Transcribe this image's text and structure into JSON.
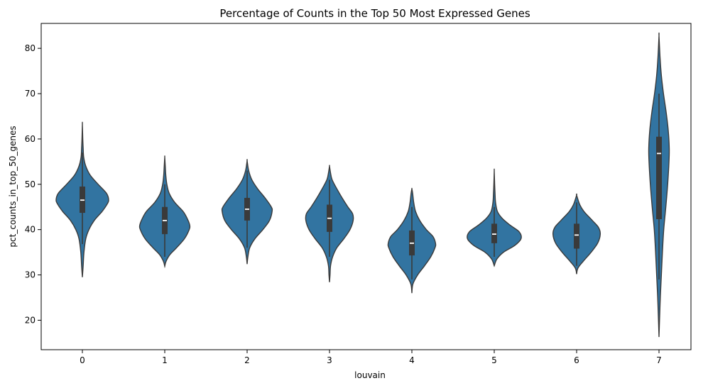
{
  "chart_data": {
    "type": "violin",
    "title": "Percentage of Counts in the Top 50 Most Expressed Genes",
    "xlabel": "louvain",
    "ylabel": "pct_counts_in_top_50_genes",
    "categories": [
      "0",
      "1",
      "2",
      "3",
      "4",
      "5",
      "6",
      "7"
    ],
    "y_ticks": [
      "20",
      "30",
      "40",
      "50",
      "60",
      "70",
      "80"
    ],
    "ylim": [
      13.5,
      85.5
    ],
    "colors": {
      "fill": "#3274a1",
      "edge": "#3a3a3a",
      "box": "#3a3a3a",
      "median": "#ffffff"
    },
    "violins": [
      {
        "category": "0",
        "min": 29.5,
        "max": 63.3,
        "q1": 43.7,
        "median": 46.5,
        "q3": 49.5,
        "whisker_low": 36.8,
        "whisker_high": 57.0,
        "profile": [
          [
            29.5,
            0.0
          ],
          [
            32,
            0.03
          ],
          [
            35,
            0.06
          ],
          [
            38,
            0.13
          ],
          [
            40,
            0.25
          ],
          [
            42,
            0.45
          ],
          [
            44,
            0.75
          ],
          [
            45.5,
            0.93
          ],
          [
            46.5,
            1.0
          ],
          [
            48,
            0.92
          ],
          [
            50,
            0.6
          ],
          [
            52,
            0.3
          ],
          [
            54,
            0.13
          ],
          [
            56,
            0.05
          ],
          [
            58,
            0.03
          ],
          [
            60,
            0.015
          ],
          [
            63.3,
            0.0
          ]
        ]
      },
      {
        "category": "1",
        "min": 31.9,
        "max": 56.0,
        "q1": 39.0,
        "median": 42.0,
        "q3": 45.0,
        "whisker_low": 34.0,
        "whisker_high": 50.0,
        "profile": [
          [
            31.9,
            0.0
          ],
          [
            33,
            0.05
          ],
          [
            34.5,
            0.2
          ],
          [
            36,
            0.45
          ],
          [
            38,
            0.75
          ],
          [
            40,
            0.93
          ],
          [
            41,
            0.95
          ],
          [
            42.5,
            0.85
          ],
          [
            44,
            0.7
          ],
          [
            46,
            0.38
          ],
          [
            48,
            0.17
          ],
          [
            50,
            0.08
          ],
          [
            52,
            0.04
          ],
          [
            54,
            0.02
          ],
          [
            56,
            0.0
          ]
        ]
      },
      {
        "category": "2",
        "min": 32.4,
        "max": 55.2,
        "q1": 42.0,
        "median": 44.5,
        "q3": 47.0,
        "whisker_low": 36.0,
        "whisker_high": 53.0,
        "profile": [
          [
            32.4,
            0.0
          ],
          [
            34,
            0.03
          ],
          [
            36,
            0.1
          ],
          [
            38,
            0.3
          ],
          [
            40,
            0.6
          ],
          [
            42,
            0.85
          ],
          [
            44,
            0.95
          ],
          [
            45,
            0.92
          ],
          [
            47,
            0.68
          ],
          [
            49,
            0.4
          ],
          [
            51,
            0.18
          ],
          [
            53,
            0.06
          ],
          [
            55.2,
            0.0
          ]
        ]
      },
      {
        "category": "3",
        "min": 28.4,
        "max": 54.0,
        "q1": 39.5,
        "median": 42.5,
        "q3": 45.5,
        "whisker_low": 34.0,
        "whisker_high": 51.0,
        "profile": [
          [
            28.4,
            0.0
          ],
          [
            30,
            0.02
          ],
          [
            32,
            0.04
          ],
          [
            34,
            0.12
          ],
          [
            36,
            0.28
          ],
          [
            38,
            0.55
          ],
          [
            40,
            0.78
          ],
          [
            42,
            0.9
          ],
          [
            43.5,
            0.88
          ],
          [
            45,
            0.7
          ],
          [
            47,
            0.48
          ],
          [
            49,
            0.28
          ],
          [
            51,
            0.1
          ],
          [
            52.5,
            0.04
          ],
          [
            54,
            0.0
          ]
        ]
      },
      {
        "category": "4",
        "min": 26.0,
        "max": 49.0,
        "q1": 34.3,
        "median": 37.0,
        "q3": 39.8,
        "whisker_low": 29.0,
        "whisker_high": 45.0,
        "profile": [
          [
            26.0,
            0.0
          ],
          [
            28,
            0.04
          ],
          [
            30,
            0.22
          ],
          [
            32,
            0.48
          ],
          [
            34,
            0.72
          ],
          [
            36,
            0.88
          ],
          [
            37,
            0.9
          ],
          [
            38.5,
            0.8
          ],
          [
            40,
            0.55
          ],
          [
            42,
            0.3
          ],
          [
            44,
            0.14
          ],
          [
            46,
            0.07
          ],
          [
            48,
            0.03
          ],
          [
            49,
            0.0
          ]
        ]
      },
      {
        "category": "5",
        "min": 32.0,
        "max": 53.0,
        "q1": 37.0,
        "median": 39.0,
        "q3": 41.3,
        "whisker_low": 34.0,
        "whisker_high": 45.0,
        "profile": [
          [
            32.0,
            0.0
          ],
          [
            33.5,
            0.1
          ],
          [
            35,
            0.35
          ],
          [
            36.5,
            0.78
          ],
          [
            38,
            1.02
          ],
          [
            39.5,
            0.95
          ],
          [
            41,
            0.6
          ],
          [
            42.5,
            0.3
          ],
          [
            44,
            0.12
          ],
          [
            46,
            0.05
          ],
          [
            48,
            0.03
          ],
          [
            50,
            0.015
          ],
          [
            53,
            0.0
          ]
        ]
      },
      {
        "category": "6",
        "min": 30.2,
        "max": 47.6,
        "q1": 35.8,
        "median": 38.8,
        "q3": 41.3,
        "whisker_low": 32.0,
        "whisker_high": 46.0,
        "profile": [
          [
            30.2,
            0.0
          ],
          [
            31.5,
            0.05
          ],
          [
            33,
            0.25
          ],
          [
            35,
            0.55
          ],
          [
            37,
            0.8
          ],
          [
            39,
            0.9
          ],
          [
            40.5,
            0.83
          ],
          [
            42,
            0.6
          ],
          [
            44,
            0.28
          ],
          [
            45.5,
            0.12
          ],
          [
            47.6,
            0.0
          ]
        ]
      },
      {
        "category": "7",
        "min": 16.3,
        "max": 82.8,
        "q1": 42.3,
        "median": 56.8,
        "q3": 60.5,
        "whisker_low": 29.0,
        "whisker_high": 70.0,
        "profile": [
          [
            16.3,
            0.0
          ],
          [
            20,
            0.02
          ],
          [
            25,
            0.05
          ],
          [
            30,
            0.09
          ],
          [
            35,
            0.13
          ],
          [
            40,
            0.18
          ],
          [
            45,
            0.26
          ],
          [
            50,
            0.33
          ],
          [
            55,
            0.38
          ],
          [
            58,
            0.39
          ],
          [
            62,
            0.35
          ],
          [
            66,
            0.27
          ],
          [
            70,
            0.17
          ],
          [
            74,
            0.09
          ],
          [
            78,
            0.04
          ],
          [
            82.8,
            0.0
          ]
        ]
      }
    ]
  }
}
